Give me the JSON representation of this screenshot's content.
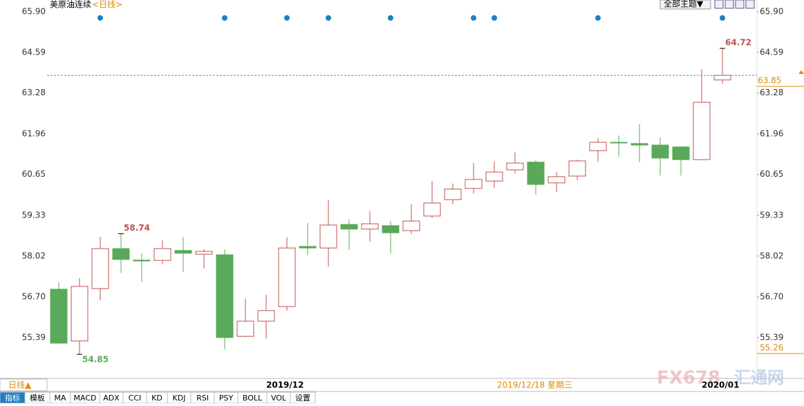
{
  "chart_data": {
    "type": "candlestick",
    "title": "美原油连续",
    "period": "<日线>",
    "theme_button": "全部主题▼",
    "categories": [
      null,
      null,
      null,
      null,
      null,
      null,
      null,
      null,
      null,
      null,
      "2019/12",
      null,
      null,
      null,
      null,
      null,
      null,
      null,
      null,
      null,
      null,
      null,
      null,
      null,
      null,
      null,
      null,
      null,
      null,
      null,
      null,
      "2020/01",
      null
    ],
    "series": [
      {
        "up_color": "#c0504d",
        "down_color": "#5aa95a",
        "open": [
          56.95,
          55.28,
          56.97,
          58.26,
          57.89,
          57.88,
          58.2,
          58.08,
          58.06,
          55.43,
          55.92,
          56.39,
          58.33,
          58.28,
          59.04,
          58.89,
          59.0,
          58.84,
          59.31,
          59.84,
          60.2,
          60.44,
          60.8,
          61.05,
          60.38,
          60.6,
          61.42,
          61.69,
          61.65,
          61.6,
          61.54,
          61.13,
          63.7
        ],
        "high": [
          57.17,
          57.31,
          58.64,
          58.74,
          58.11,
          58.53,
          58.64,
          58.24,
          58.24,
          56.64,
          56.77,
          58.62,
          59.09,
          59.82,
          59.2,
          59.47,
          59.15,
          59.69,
          60.44,
          60.36,
          61.02,
          61.07,
          61.36,
          61.11,
          60.73,
          61.13,
          61.83,
          61.91,
          62.27,
          61.85,
          61.56,
          64.05,
          64.72
        ],
        "low": [
          55.17,
          54.85,
          56.59,
          57.48,
          57.19,
          57.75,
          57.51,
          57.62,
          55.01,
          55.4,
          55.35,
          56.26,
          58.06,
          57.68,
          58.22,
          58.49,
          58.11,
          58.73,
          59.24,
          59.69,
          60.04,
          60.22,
          60.69,
          60.0,
          60.09,
          60.47,
          61.05,
          61.22,
          61.05,
          60.62,
          60.62,
          61.13,
          63.58
        ],
        "close": [
          55.21,
          57.04,
          58.26,
          57.91,
          57.86,
          58.26,
          58.11,
          58.17,
          55.39,
          55.92,
          56.26,
          58.28,
          58.28,
          59.02,
          58.89,
          59.06,
          58.77,
          59.15,
          59.73,
          60.18,
          60.49,
          60.73,
          61.02,
          60.33,
          60.58,
          61.09,
          61.69,
          61.67,
          61.6,
          61.18,
          61.13,
          62.98,
          63.85
        ]
      }
    ],
    "ylim": [
      54.14,
      66.28
    ],
    "yticks": [
      {
        "value": 65.9,
        "label": "65.90"
      },
      64.59,
      63.28,
      61.96,
      60.65,
      59.33,
      58.02,
      {
        "value": 56.7,
        "label": "56.70"
      },
      55.39
    ],
    "last_price": 63.85,
    "low_price_label": "55.26",
    "annotations": [
      "58.74",
      "54.85",
      "64.72"
    ],
    "cursor_date": "2019/12/18 星期三",
    "period_tab": "日线▲",
    "toolbar": [
      "指标",
      "模板",
      "MA",
      "MACD",
      "ADX",
      "CCI",
      "KD",
      "KDJ",
      "RSI",
      "PSY",
      "BOLL",
      "VOL",
      "设置"
    ],
    "watermark": [
      "FX678",
      "汇通网"
    ]
  }
}
